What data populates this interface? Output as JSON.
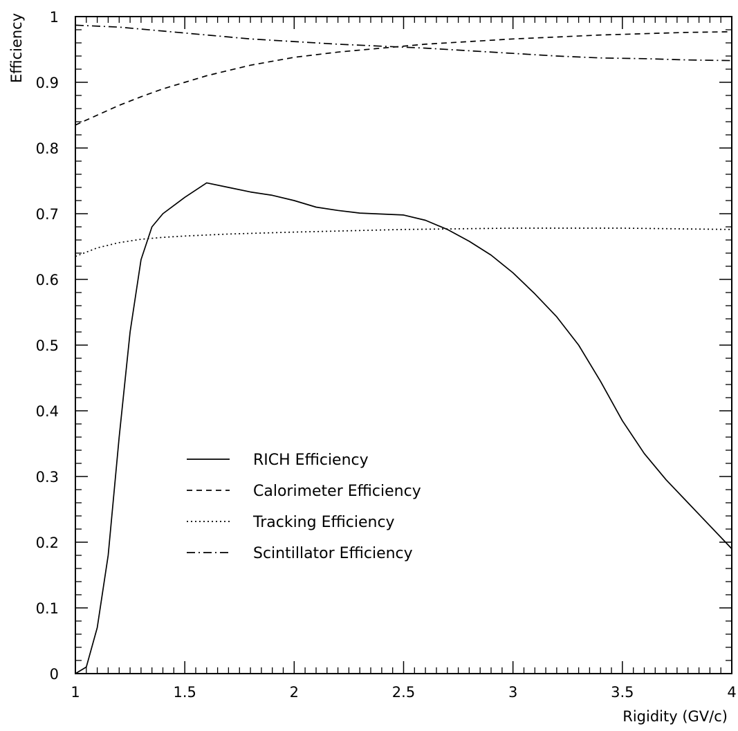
{
  "chart_data": {
    "type": "line",
    "xlabel": "Rigidity (GV/c)",
    "ylabel": "Efficiency",
    "xlim": [
      1,
      4
    ],
    "ylim": [
      0,
      1
    ],
    "xticks": [
      {
        "value": 1,
        "label": "1"
      },
      {
        "value": 1.5,
        "label": "1.5"
      },
      {
        "value": 2,
        "label": "2"
      },
      {
        "value": 2.5,
        "label": "2.5"
      },
      {
        "value": 3,
        "label": "3"
      },
      {
        "value": 3.5,
        "label": "3.5"
      },
      {
        "value": 4,
        "label": "4"
      }
    ],
    "yticks": [
      {
        "value": 0,
        "label": "0"
      },
      {
        "value": 0.1,
        "label": "0.1"
      },
      {
        "value": 0.2,
        "label": "0.2"
      },
      {
        "value": 0.3,
        "label": "0.3"
      },
      {
        "value": 0.4,
        "label": "0.4"
      },
      {
        "value": 0.5,
        "label": "0.5"
      },
      {
        "value": 0.6,
        "label": "0.6"
      },
      {
        "value": 0.7,
        "label": "0.7"
      },
      {
        "value": 0.8,
        "label": "0.8"
      },
      {
        "value": 0.9,
        "label": "0.9"
      },
      {
        "value": 1,
        "label": "1"
      }
    ],
    "grid": false,
    "legend_position": "lower-left",
    "series": [
      {
        "name": "RICH Efficiency",
        "style": "solid",
        "color": "#000000",
        "points": [
          [
            1.0,
            0.0
          ],
          [
            1.05,
            0.01
          ],
          [
            1.1,
            0.07
          ],
          [
            1.15,
            0.18
          ],
          [
            1.2,
            0.36
          ],
          [
            1.25,
            0.52
          ],
          [
            1.3,
            0.63
          ],
          [
            1.35,
            0.68
          ],
          [
            1.4,
            0.7
          ],
          [
            1.5,
            0.725
          ],
          [
            1.6,
            0.747
          ],
          [
            1.7,
            0.74
          ],
          [
            1.8,
            0.733
          ],
          [
            1.9,
            0.728
          ],
          [
            2.0,
            0.72
          ],
          [
            2.1,
            0.71
          ],
          [
            2.2,
            0.705
          ],
          [
            2.3,
            0.701
          ],
          [
            2.5,
            0.698
          ],
          [
            2.6,
            0.69
          ],
          [
            2.7,
            0.676
          ],
          [
            2.8,
            0.658
          ],
          [
            2.9,
            0.637
          ],
          [
            3.0,
            0.61
          ],
          [
            3.1,
            0.578
          ],
          [
            3.2,
            0.543
          ],
          [
            3.3,
            0.5
          ],
          [
            3.4,
            0.445
          ],
          [
            3.5,
            0.385
          ],
          [
            3.6,
            0.335
          ],
          [
            3.7,
            0.295
          ],
          [
            3.8,
            0.26
          ],
          [
            3.9,
            0.225
          ],
          [
            4.0,
            0.19
          ]
        ]
      },
      {
        "name": "Calorimeter Efficiency",
        "style": "dashed",
        "color": "#000000",
        "points": [
          [
            1.0,
            0.835
          ],
          [
            1.1,
            0.85
          ],
          [
            1.2,
            0.865
          ],
          [
            1.3,
            0.878
          ],
          [
            1.4,
            0.89
          ],
          [
            1.5,
            0.9
          ],
          [
            1.6,
            0.91
          ],
          [
            1.7,
            0.918
          ],
          [
            1.8,
            0.926
          ],
          [
            1.9,
            0.932
          ],
          [
            2.0,
            0.938
          ],
          [
            2.2,
            0.946
          ],
          [
            2.4,
            0.952
          ],
          [
            2.6,
            0.958
          ],
          [
            2.8,
            0.962
          ],
          [
            3.0,
            0.966
          ],
          [
            3.2,
            0.969
          ],
          [
            3.4,
            0.972
          ],
          [
            3.6,
            0.974
          ],
          [
            3.8,
            0.976
          ],
          [
            4.0,
            0.977
          ]
        ]
      },
      {
        "name": "Tracking Efficiency",
        "style": "dotted",
        "color": "#000000",
        "points": [
          [
            1.0,
            0.635
          ],
          [
            1.1,
            0.648
          ],
          [
            1.2,
            0.656
          ],
          [
            1.3,
            0.661
          ],
          [
            1.4,
            0.664
          ],
          [
            1.5,
            0.666
          ],
          [
            1.7,
            0.669
          ],
          [
            2.0,
            0.672
          ],
          [
            2.5,
            0.676
          ],
          [
            3.0,
            0.678
          ],
          [
            3.5,
            0.678
          ],
          [
            4.0,
            0.676
          ]
        ]
      },
      {
        "name": "Scintillator Efficiency",
        "style": "dash-dot",
        "color": "#000000",
        "points": [
          [
            1.0,
            0.987
          ],
          [
            1.2,
            0.984
          ],
          [
            1.4,
            0.978
          ],
          [
            1.6,
            0.972
          ],
          [
            1.8,
            0.966
          ],
          [
            2.0,
            0.962
          ],
          [
            2.2,
            0.958
          ],
          [
            2.4,
            0.955
          ],
          [
            2.6,
            0.952
          ],
          [
            2.8,
            0.948
          ],
          [
            3.0,
            0.944
          ],
          [
            3.2,
            0.94
          ],
          [
            3.4,
            0.937
          ],
          [
            3.6,
            0.936
          ],
          [
            3.8,
            0.934
          ],
          [
            4.0,
            0.933
          ]
        ]
      }
    ]
  }
}
